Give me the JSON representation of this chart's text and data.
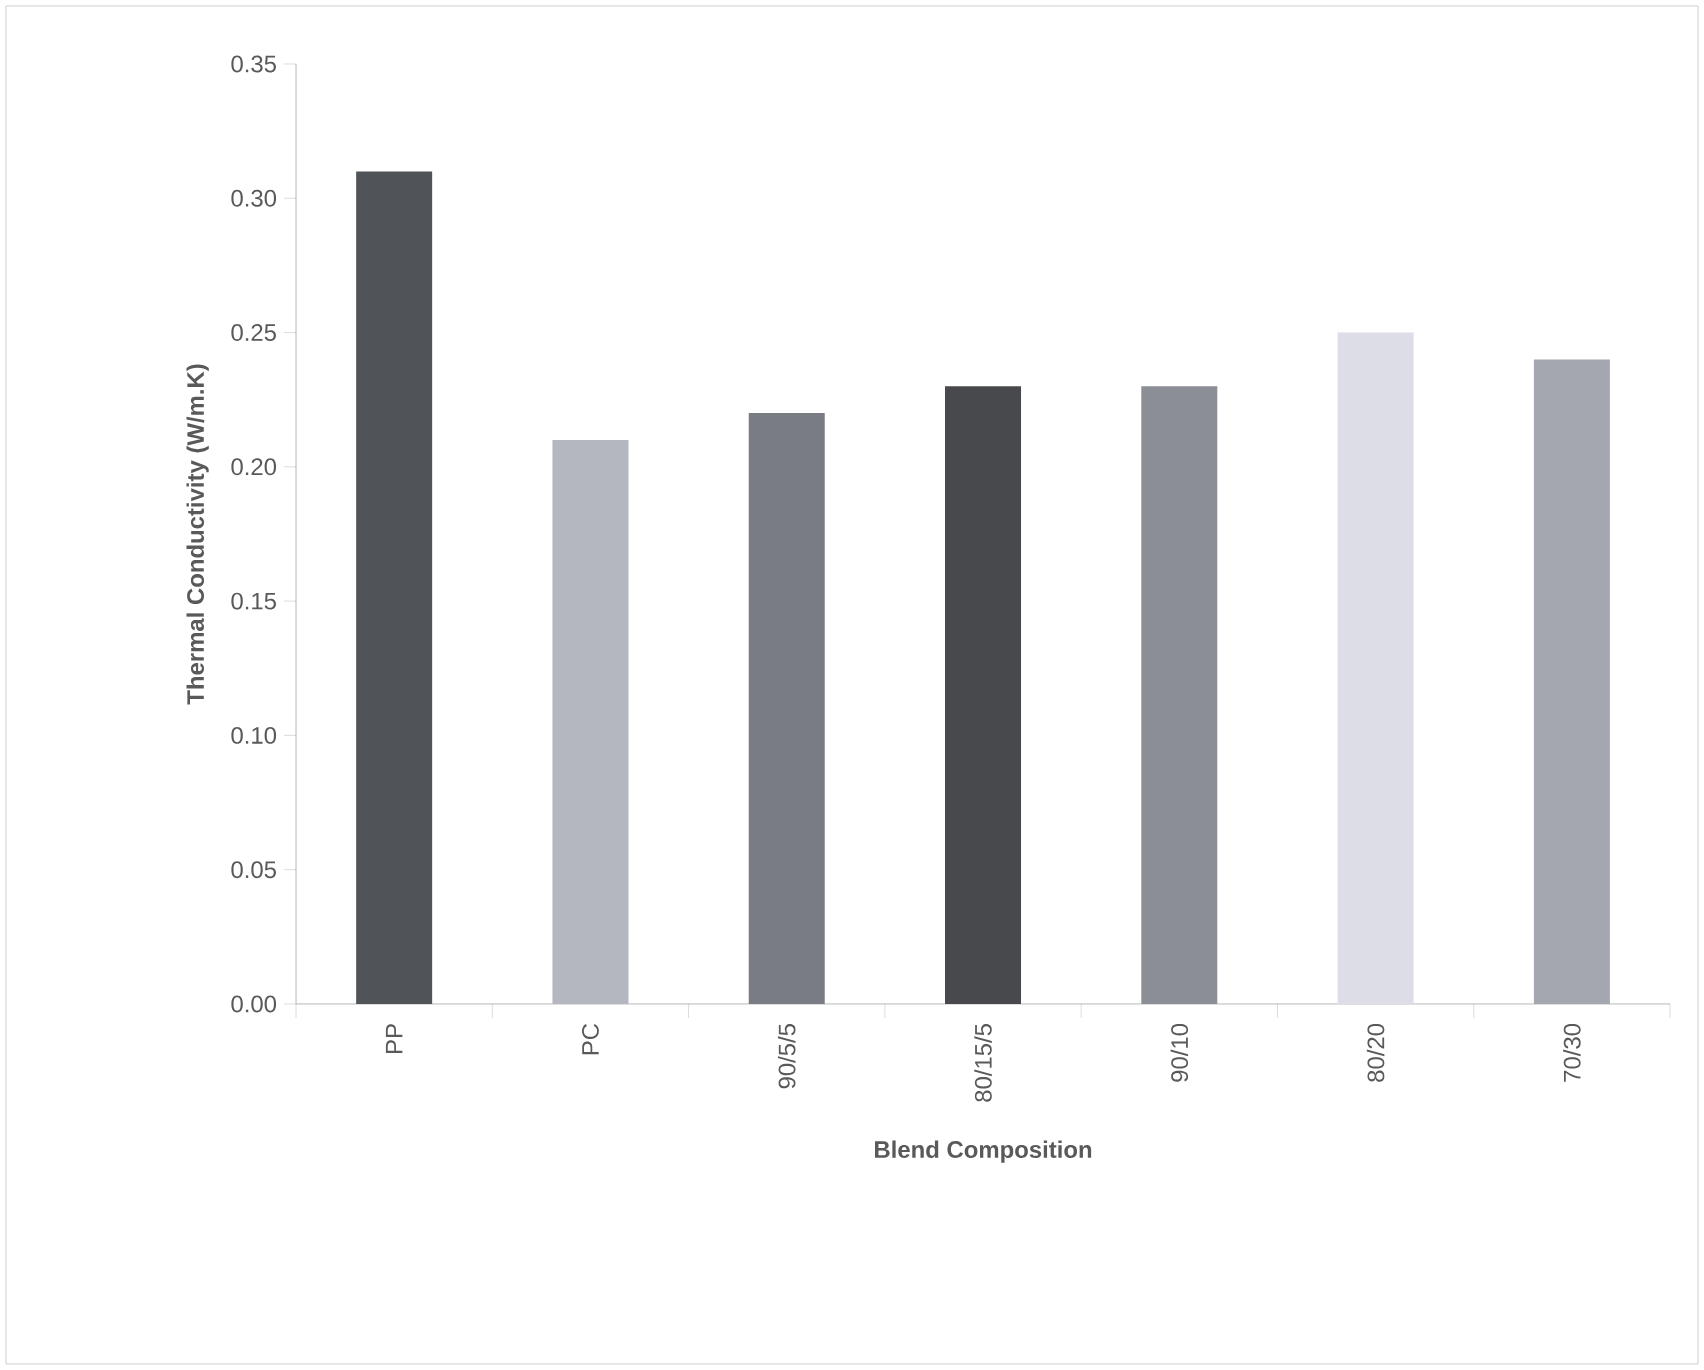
{
  "chart_data": {
    "type": "bar",
    "xlabel": "Blend Composition",
    "ylabel": "Thermal Conductivity  (W/m.K)",
    "categories": [
      "PP",
      "PC",
      "90/5/5",
      "80/15/5",
      "90/10",
      "80/20",
      "70/30"
    ],
    "values": [
      0.31,
      0.21,
      0.22,
      0.23,
      0.23,
      0.25,
      0.24
    ],
    "colors": [
      "#505458",
      "#b4b6c0",
      "#7a7c84",
      "#48494d",
      "#8c8e96",
      "#dcdde6",
      "#a4a6b0"
    ],
    "ylim": [
      0,
      0.35
    ],
    "yticks": [
      {
        "value": 0,
        "label": "0.00"
      },
      {
        "value": 0.05,
        "label": "0.05"
      },
      {
        "value": 0.1,
        "label": "0.10"
      },
      {
        "value": 0.15,
        "label": "0.15"
      },
      {
        "value": 0.2,
        "label": "0.20"
      },
      {
        "value": 0.25,
        "label": "0.25"
      },
      {
        "value": 0.3,
        "label": "0.30"
      },
      {
        "value": 0.35,
        "label": "0.35"
      }
    ],
    "grid": false
  }
}
